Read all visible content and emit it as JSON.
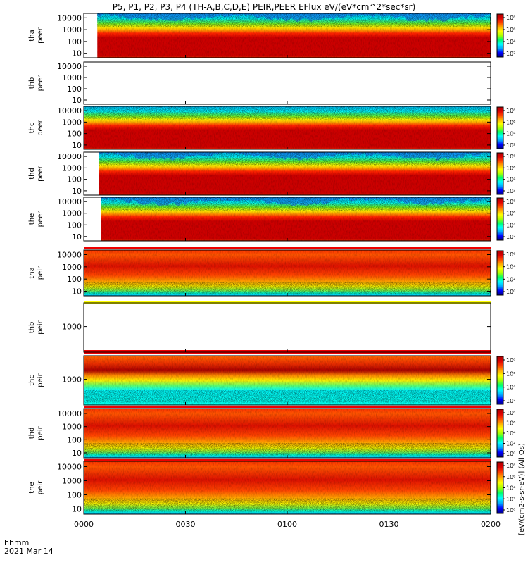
{
  "title": "P5, P1, P2, P3, P4 (TH-A,B,C,D,E) PEIR,PEER EFlux eV/(eV*cm^2*sec*sr)",
  "colors": {
    "colormap": [
      "#000080",
      "#0000ff",
      "#00aaff",
      "#00ffff",
      "#00ff66",
      "#aaff00",
      "#ffff00",
      "#ffaa00",
      "#ff4400",
      "#dd0000",
      "#aa0000"
    ],
    "background": "#ffffff",
    "frame": "#000000"
  },
  "chart_data": {
    "type": "heatmap",
    "x_axis": {
      "tick_labels": [
        "0000",
        "0030",
        "0100",
        "0130",
        "0200"
      ],
      "ticks_minutes": [
        0,
        30,
        60,
        90,
        120
      ],
      "range_minutes": [
        0,
        120
      ],
      "label_line1": "hhmm",
      "label_line2": "2021 Mar 14"
    },
    "colorbar_label": "[eV/(cm2-s-sr-eV)] (All Qs)",
    "panels": [
      {
        "name": "tha peer",
        "ylabel_1": "tha",
        "ylabel_2": "peer",
        "ytick_labels": [
          "10000",
          "1000",
          "100",
          "10"
        ],
        "ylog": true,
        "has_data": true,
        "data_start_minute": 4,
        "colorbar_ticks": [
          "10⁸",
          "10⁶",
          "10⁴",
          "10²"
        ],
        "colorbar_range_log10": [
          1,
          8
        ]
      },
      {
        "name": "thb peer",
        "ylabel_1": "thb",
        "ylabel_2": "peer",
        "ytick_labels": [
          "10000",
          "1000",
          "100",
          "10"
        ],
        "ylog": true,
        "has_data": false
      },
      {
        "name": "thc peer",
        "ylabel_1": "thc",
        "ylabel_2": "peer",
        "ytick_labels": [
          "10000",
          "1000",
          "100",
          "10"
        ],
        "ylog": true,
        "has_data": true,
        "data_start_minute": 0,
        "colorbar_ticks": [
          "10⁸",
          "10⁶",
          "10⁴",
          "10²"
        ],
        "colorbar_range_log10": [
          1,
          8
        ]
      },
      {
        "name": "thd peer",
        "ylabel_1": "thd",
        "ylabel_2": "peer",
        "ytick_labels": [
          "10000",
          "1000",
          "100",
          "10"
        ],
        "ylog": true,
        "has_data": true,
        "data_start_minute": 4.5,
        "colorbar_ticks": [
          "10⁸",
          "10⁶",
          "10⁴",
          "10²"
        ],
        "colorbar_range_log10": [
          1,
          8
        ]
      },
      {
        "name": "the peer",
        "ylabel_1": "the",
        "ylabel_2": "peer",
        "ytick_labels": [
          "10000",
          "1000",
          "100",
          "10"
        ],
        "ylog": true,
        "has_data": true,
        "data_start_minute": 5,
        "colorbar_ticks": [
          "10⁸",
          "10⁶",
          "10⁴",
          "10²"
        ],
        "colorbar_range_log10": [
          1,
          8
        ]
      },
      {
        "name": "tha peir",
        "ylabel_1": "tha",
        "ylabel_2": "peir",
        "ytick_labels": [
          "10000",
          "1000",
          "100",
          "10"
        ],
        "ylog": true,
        "has_data": true,
        "data_start_minute": 0,
        "colorbar_ticks": [
          "10⁶",
          "10⁴",
          "10²",
          "10⁰"
        ],
        "colorbar_range_log10": [
          0,
          7
        ]
      },
      {
        "name": "thb peir",
        "ylabel_1": "thb",
        "ylabel_2": "peir",
        "ytick_labels": [
          "1000"
        ],
        "ylog": true,
        "has_data": false
      },
      {
        "name": "thc peir",
        "ylabel_1": "thc",
        "ylabel_2": "peir",
        "ytick_labels": [
          "1000"
        ],
        "ylog": true,
        "has_data": true,
        "data_start_minute": 0,
        "colorbar_ticks": [
          "10⁸",
          "10⁶",
          "10⁴",
          "10²"
        ],
        "colorbar_range_log10": [
          1,
          8
        ]
      },
      {
        "name": "thd peir",
        "ylabel_1": "thd",
        "ylabel_2": "peir",
        "ytick_labels": [
          "10000",
          "1000",
          "100",
          "10"
        ],
        "ylog": true,
        "has_data": true,
        "data_start_minute": 0,
        "colorbar_ticks": [
          "10⁸",
          "10⁶",
          "10⁴",
          "10²",
          "10⁰"
        ],
        "colorbar_range_log10": [
          0,
          8
        ]
      },
      {
        "name": "the peir",
        "ylabel_1": "the",
        "ylabel_2": "peir",
        "ytick_labels": [
          "10000",
          "1000",
          "100",
          "10"
        ],
        "ylog": true,
        "has_data": true,
        "data_start_minute": 0,
        "colorbar_ticks": [
          "10⁸",
          "10⁶",
          "10⁴",
          "10²",
          "10⁰"
        ],
        "colorbar_range_log10": [
          0,
          8
        ]
      }
    ]
  }
}
